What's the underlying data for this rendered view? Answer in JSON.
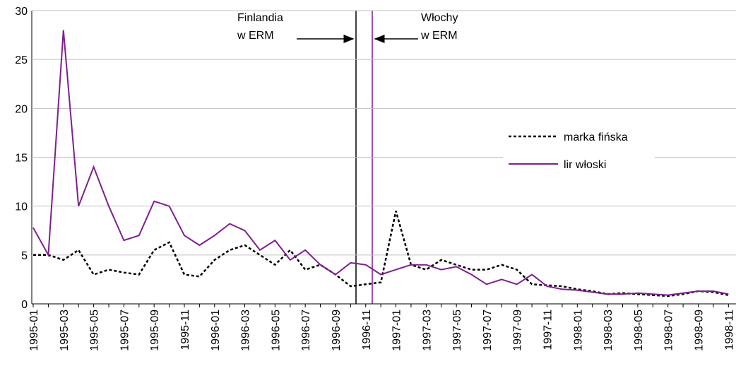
{
  "chart_data": {
    "type": "line",
    "categories": [
      "1995-01",
      null,
      "1995-03",
      null,
      "1995-05",
      null,
      "1995-07",
      null,
      "1995-09",
      null,
      "1995-11",
      null,
      "1996-01",
      null,
      "1996-03",
      null,
      "1996-05",
      null,
      "1996-07",
      null,
      "1996-09",
      null,
      "1996-11",
      null,
      "1997-01",
      null,
      "1997-03",
      null,
      "1997-05",
      null,
      "1997-07",
      null,
      "1997-09",
      null,
      "1997-11",
      null,
      "1998-01",
      null,
      "1998-03",
      null,
      "1998-05",
      null,
      "1998-07",
      null,
      "1998-09",
      null,
      "1998-11"
    ],
    "series": [
      {
        "name": "marka fińska",
        "color": "#000000",
        "dash": true,
        "values": [
          5,
          5,
          4.5,
          5.5,
          3,
          3.5,
          3.2,
          3,
          5.5,
          6.3,
          3,
          2.8,
          4.5,
          5.5,
          6,
          5,
          4,
          5.5,
          3.5,
          4,
          3,
          1.8,
          2,
          2.2,
          9.5,
          4,
          3.5,
          4.5,
          4,
          3.5,
          3.5,
          4,
          3.5,
          2,
          1.9,
          1.8,
          1.5,
          1.3,
          1,
          1.1,
          1,
          0.9,
          0.8,
          1,
          1.3,
          1.2,
          0.9
        ]
      },
      {
        "name": "lir włoski",
        "color": "#7f1f8f",
        "dash": false,
        "values": [
          7.8,
          5,
          28,
          10,
          14,
          10,
          6.5,
          7,
          10.5,
          10,
          7,
          6,
          7,
          8.2,
          7.5,
          5.5,
          6.5,
          4.5,
          5.5,
          4,
          3,
          4.2,
          4,
          3,
          3.5,
          4,
          4,
          3.5,
          3.8,
          3,
          2,
          2.5,
          2,
          3,
          1.8,
          1.5,
          1.4,
          1.2,
          1,
          1,
          1.1,
          1,
          0.9,
          1.1,
          1.3,
          1.3,
          1
        ]
      }
    ],
    "ylim": [
      0,
      30
    ],
    "yticks": [
      0,
      5,
      10,
      15,
      20,
      25,
      30
    ],
    "grid": true,
    "legend": "right",
    "annotations": [
      {
        "lines": [
          "Finlandia",
          "w ERM"
        ]
      },
      {
        "lines": [
          "Włochy",
          "w ERM"
        ]
      }
    ]
  }
}
